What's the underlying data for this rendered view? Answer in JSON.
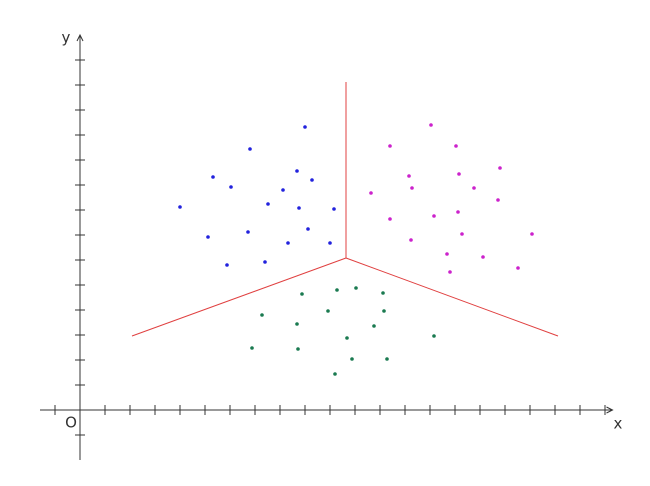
{
  "chart_data": {
    "type": "scatter",
    "x_label": "x",
    "y_label": "y",
    "origin_label": "O",
    "xlim": [
      -1.6,
      21.3
    ],
    "ylim": [
      -2,
      15
    ],
    "xticks": [
      -1,
      1,
      2,
      3,
      4,
      5,
      6,
      7,
      8,
      9,
      10,
      11,
      12,
      13,
      14,
      15,
      16,
      17,
      18,
      19,
      20,
      21
    ],
    "yticks": [
      -1,
      1,
      2,
      3,
      4,
      5,
      6,
      7,
      8,
      9,
      10,
      11,
      12,
      13,
      14
    ],
    "series": [
      {
        "color": "#2222dd",
        "x": [
          9.0,
          6.8,
          5.32,
          6.04,
          8.68,
          8.12,
          9.28,
          7.52,
          8.76,
          10.16,
          4.0,
          6.72,
          9.12,
          8.32,
          10.0,
          5.12,
          7.4,
          5.88
        ],
        "values": [
          11.32,
          10.44,
          9.32,
          8.92,
          9.56,
          8.8,
          9.2,
          8.24,
          8.08,
          8.04,
          8.12,
          7.12,
          7.24,
          6.68,
          6.68,
          6.92,
          5.92,
          5.8
        ]
      },
      {
        "color": "#cc22cc",
        "x": [
          14.04,
          12.4,
          15.04,
          16.8,
          13.16,
          15.16,
          13.28,
          15.76,
          11.64,
          16.72,
          15.12,
          14.16,
          12.4,
          15.28,
          18.08,
          13.24,
          14.68,
          16.12,
          17.52,
          14.8
        ],
        "values": [
          11.4,
          10.56,
          10.56,
          9.68,
          9.36,
          9.44,
          8.88,
          8.88,
          8.68,
          8.4,
          7.92,
          7.76,
          7.64,
          7.04,
          7.04,
          6.8,
          6.24,
          6.12,
          5.68,
          5.52
        ]
      },
      {
        "color": "#1a7a50",
        "x": [
          10.28,
          11.04,
          8.88,
          12.12,
          9.92,
          12.16,
          7.28,
          8.68,
          11.76,
          10.68,
          14.16,
          6.88,
          8.72,
          10.88,
          12.28,
          10.2
        ],
        "values": [
          4.8,
          4.88,
          4.64,
          4.68,
          3.96,
          3.96,
          3.8,
          3.44,
          3.36,
          2.88,
          2.96,
          2.48,
          2.44,
          2.04,
          2.04,
          1.44
        ]
      }
    ],
    "boundaries": {
      "color": "#e04040",
      "lines": [
        {
          "x": [
            10.64,
            10.64
          ],
          "values": [
            6.08,
            13.12
          ]
        },
        {
          "x": [
            10.64,
            2.08
          ],
          "values": [
            6.08,
            2.96
          ]
        },
        {
          "x": [
            10.64,
            19.12
          ],
          "values": [
            6.08,
            2.96
          ]
        }
      ]
    }
  }
}
